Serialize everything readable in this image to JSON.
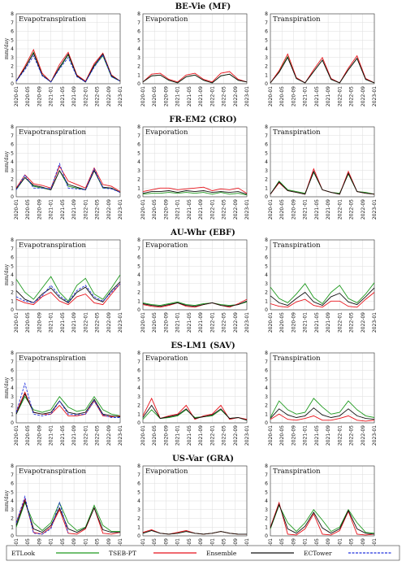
{
  "chart_data": {
    "type": "line",
    "x": [
      "2020-01",
      "2020-04",
      "2020-07",
      "2020-10",
      "2021-01",
      "2021-04",
      "2021-07",
      "2021-10",
      "2022-01",
      "2022-04",
      "2022-07",
      "2022-10",
      "2023-01"
    ],
    "xlim": [
      "2020-01",
      "2023-01"
    ],
    "xticks": [
      "2020-01",
      "2020-05",
      "2020-09",
      "2021-01",
      "2021-05",
      "2021-09",
      "2022-01",
      "2022-05",
      "2022-09",
      "2023-01"
    ],
    "ylim": [
      0,
      8
    ],
    "yticks": [
      0,
      1,
      2,
      3,
      4,
      5,
      6,
      7,
      8
    ],
    "grid": true,
    "ylabel": "mm/day",
    "legend_position": "bottom",
    "legend": [
      {
        "name": "ETLook",
        "color": "#1f9a1f",
        "dash": false
      },
      {
        "name": "TSEB-PT",
        "color": "#e8121a",
        "dash": false
      },
      {
        "name": "Ensemble",
        "color": "#111111",
        "dash": false
      },
      {
        "name": "ECTower",
        "color": "#2233dd",
        "dash": true
      }
    ],
    "rows": [
      {
        "title": "BE-Vie (MF)",
        "panels": [
          {
            "title": "Evapotranspiration",
            "series": [
              [
                0.3,
                1.8,
                3.6,
                1.0,
                0.2,
                1.8,
                3.3,
                0.9,
                0.2,
                2.0,
                3.2,
                0.8,
                0.3
              ],
              [
                0.3,
                2.0,
                3.9,
                1.2,
                0.2,
                2.2,
                3.6,
                1.0,
                0.3,
                2.3,
                3.5,
                1.0,
                0.3
              ],
              [
                0.3,
                1.8,
                3.5,
                1.0,
                0.2,
                1.9,
                3.4,
                0.9,
                0.2,
                2.1,
                3.4,
                0.9,
                0.3
              ],
              [
                0.3,
                1.6,
                3.2,
                0.9,
                0.2,
                1.7,
                3.0,
                0.8,
                0.2,
                1.9,
                3.3,
                0.8,
                0.3
              ]
            ]
          },
          {
            "title": "Evaporation",
            "series": [
              [
                0.2,
                0.9,
                1.0,
                0.4,
                0.1,
                0.8,
                1.0,
                0.4,
                0.1,
                0.9,
                1.1,
                0.4,
                0.2
              ],
              [
                0.2,
                1.1,
                1.2,
                0.5,
                0.2,
                1.0,
                1.2,
                0.5,
                0.2,
                1.2,
                1.4,
                0.5,
                0.2
              ],
              [
                0.2,
                0.9,
                1.0,
                0.4,
                0.1,
                0.8,
                1.0,
                0.4,
                0.1,
                0.9,
                1.1,
                0.4,
                0.2
              ]
            ]
          },
          {
            "title": "Transpiration",
            "series": [
              [
                0.1,
                1.4,
                3.1,
                0.6,
                0.1,
                1.4,
                2.7,
                0.5,
                0.1,
                1.6,
                2.9,
                0.5,
                0.1
              ],
              [
                0.1,
                1.5,
                3.4,
                0.7,
                0.1,
                1.6,
                3.0,
                0.6,
                0.1,
                1.8,
                3.2,
                0.6,
                0.1
              ],
              [
                0.1,
                1.3,
                3.0,
                0.6,
                0.1,
                1.4,
                2.7,
                0.5,
                0.1,
                1.6,
                2.9,
                0.5,
                0.1
              ]
            ]
          }
        ]
      },
      {
        "title": "FR-EM2 (CRO)",
        "panels": [
          {
            "title": "Evapotranspiration",
            "series": [
              [
                0.8,
                2.2,
                1.2,
                1.0,
                0.8,
                3.0,
                1.2,
                1.0,
                0.8,
                3.0,
                1.0,
                1.0,
                0.5
              ],
              [
                1.0,
                2.5,
                1.5,
                1.3,
                1.0,
                3.5,
                1.8,
                1.4,
                1.0,
                3.3,
                1.4,
                1.2,
                0.6
              ],
              [
                0.9,
                2.2,
                1.3,
                1.1,
                0.8,
                3.0,
                1.4,
                1.1,
                0.8,
                3.0,
                1.1,
                1.0,
                0.5
              ],
              [
                0.8,
                2.5,
                1.0,
                1.0,
                0.9,
                3.8,
                1.0,
                0.9,
                0.8,
                3.2,
                1.0,
                0.9,
                0.5
              ]
            ]
          },
          {
            "title": "Evaporation",
            "series": [
              [
                0.3,
                0.4,
                0.4,
                0.5,
                0.4,
                0.5,
                0.4,
                0.5,
                0.3,
                0.5,
                0.3,
                0.4,
                0.2
              ],
              [
                0.6,
                0.8,
                1.0,
                1.0,
                0.8,
                0.9,
                1.0,
                1.1,
                0.7,
                0.9,
                0.8,
                1.0,
                0.4
              ],
              [
                0.4,
                0.6,
                0.6,
                0.7,
                0.5,
                0.7,
                0.6,
                0.7,
                0.5,
                0.6,
                0.5,
                0.6,
                0.3
              ]
            ]
          },
          {
            "title": "Transpiration",
            "series": [
              [
                0.3,
                1.8,
                0.8,
                0.6,
                0.4,
                2.8,
                0.8,
                0.5,
                0.4,
                2.6,
                0.6,
                0.5,
                0.3
              ],
              [
                0.3,
                1.6,
                0.7,
                0.5,
                0.3,
                3.2,
                0.8,
                0.5,
                0.3,
                2.9,
                0.6,
                0.4,
                0.3
              ],
              [
                0.3,
                1.7,
                0.7,
                0.5,
                0.3,
                2.9,
                0.8,
                0.5,
                0.3,
                2.7,
                0.6,
                0.4,
                0.3
              ]
            ]
          }
        ]
      },
      {
        "title": "AU-Whr (EBF)",
        "panels": [
          {
            "title": "Evapotranspiration",
            "series": [
              [
                3.5,
                2.0,
                1.2,
                2.5,
                3.8,
                2.0,
                1.0,
                2.8,
                3.6,
                1.8,
                1.2,
                2.5,
                4.0
              ],
              [
                1.2,
                0.8,
                0.6,
                1.5,
                2.0,
                1.0,
                0.6,
                1.5,
                1.8,
                0.8,
                0.6,
                1.8,
                3.0
              ],
              [
                2.2,
                1.2,
                0.8,
                1.8,
                2.5,
                1.4,
                0.8,
                2.0,
                2.6,
                1.3,
                0.9,
                2.2,
                3.2
              ],
              [
                1.5,
                1.0,
                0.8,
                1.6,
                2.8,
                1.6,
                0.9,
                2.2,
                2.8,
                1.5,
                1.0,
                2.0,
                3.0
              ]
            ]
          },
          {
            "title": "Evaporation",
            "series": [
              [
                0.8,
                0.6,
                0.5,
                0.7,
                0.9,
                0.6,
                0.5,
                0.7,
                0.8,
                0.6,
                0.5,
                0.6,
                0.9
              ],
              [
                0.6,
                0.4,
                0.3,
                0.5,
                0.8,
                0.4,
                0.3,
                0.6,
                0.8,
                0.5,
                0.3,
                0.7,
                1.2
              ],
              [
                0.7,
                0.5,
                0.4,
                0.6,
                0.8,
                0.5,
                0.4,
                0.6,
                0.8,
                0.5,
                0.4,
                0.6,
                1.0
              ]
            ]
          },
          {
            "title": "Transpiration",
            "series": [
              [
                2.6,
                1.3,
                0.8,
                1.8,
                3.0,
                1.4,
                0.7,
                2.0,
                2.8,
                1.3,
                0.8,
                1.8,
                3.1
              ],
              [
                0.7,
                0.4,
                0.3,
                0.9,
                1.2,
                0.5,
                0.3,
                1.0,
                1.0,
                0.4,
                0.3,
                1.2,
                2.0
              ],
              [
                1.6,
                0.8,
                0.5,
                1.3,
                2.0,
                0.9,
                0.5,
                1.5,
                1.9,
                0.9,
                0.6,
                1.5,
                2.5
              ]
            ]
          }
        ]
      },
      {
        "title": "ES-LM1 (SAV)",
        "panels": [
          {
            "title": "Evapotranspiration",
            "series": [
              [
                1.0,
                3.0,
                1.5,
                1.2,
                1.5,
                3.0,
                1.8,
                1.3,
                1.5,
                3.0,
                1.5,
                1.0,
                0.8
              ],
              [
                1.2,
                3.5,
                1.2,
                1.0,
                1.0,
                2.0,
                0.8,
                0.8,
                1.0,
                2.5,
                0.8,
                0.7,
                0.8
              ],
              [
                1.0,
                3.3,
                1.2,
                1.0,
                1.2,
                2.5,
                1.2,
                1.0,
                1.2,
                2.7,
                1.0,
                0.8,
                0.7
              ],
              [
                1.2,
                4.5,
                1.0,
                0.8,
                1.0,
                2.5,
                1.0,
                0.9,
                1.0,
                2.5,
                0.9,
                0.6,
                0.6
              ]
            ]
          },
          {
            "title": "Evaporation",
            "series": [
              [
                0.4,
                1.5,
                0.5,
                0.6,
                0.8,
                1.5,
                0.6,
                0.7,
                0.8,
                1.5,
                0.5,
                0.6,
                0.3
              ],
              [
                0.8,
                2.8,
                0.5,
                0.8,
                1.0,
                2.0,
                0.4,
                0.8,
                1.0,
                2.0,
                0.4,
                0.6,
                0.4
              ],
              [
                0.6,
                2.0,
                0.5,
                0.7,
                0.9,
                1.6,
                0.5,
                0.7,
                0.9,
                1.6,
                0.5,
                0.6,
                0.3
              ]
            ]
          },
          {
            "title": "Transpiration",
            "series": [
              [
                0.6,
                2.5,
                1.5,
                1.0,
                1.2,
                2.8,
                1.8,
                1.0,
                1.2,
                2.5,
                1.5,
                0.8,
                0.6
              ],
              [
                0.4,
                1.0,
                0.4,
                0.3,
                0.5,
                0.8,
                0.3,
                0.3,
                0.5,
                0.8,
                0.3,
                0.2,
                0.3
              ],
              [
                0.5,
                1.6,
                0.9,
                0.6,
                0.8,
                1.7,
                0.9,
                0.6,
                0.8,
                1.6,
                0.8,
                0.5,
                0.4
              ]
            ]
          }
        ]
      },
      {
        "title": "US-Var (GRA)",
        "panels": [
          {
            "title": "Evapotranspiration",
            "series": [
              [
                1.0,
                3.8,
                1.5,
                0.6,
                1.5,
                3.8,
                1.5,
                0.6,
                1.0,
                3.5,
                1.2,
                0.5,
                0.5
              ],
              [
                1.5,
                4.2,
                0.4,
                0.2,
                1.0,
                3.0,
                0.3,
                0.2,
                0.8,
                3.2,
                0.3,
                0.2,
                0.4
              ],
              [
                1.2,
                4.0,
                0.8,
                0.4,
                1.2,
                3.2,
                0.8,
                0.4,
                0.9,
                3.2,
                0.7,
                0.4,
                0.4
              ],
              [
                1.5,
                4.5,
                0.3,
                0.2,
                0.8,
                3.8,
                0.3,
                null,
                null,
                null,
                null,
                null,
                null
              ]
            ]
          },
          {
            "title": "Evaporation",
            "series": [
              [
                0.3,
                0.6,
                0.3,
                0.2,
                0.3,
                0.5,
                0.3,
                0.2,
                0.3,
                0.5,
                0.3,
                0.2,
                0.2
              ],
              [
                0.4,
                0.7,
                0.3,
                0.2,
                0.4,
                0.6,
                0.3,
                0.2,
                0.3,
                0.5,
                0.3,
                0.2,
                0.2
              ],
              [
                0.3,
                0.6,
                0.3,
                0.2,
                0.3,
                0.5,
                0.3,
                0.2,
                0.3,
                0.5,
                0.3,
                0.2,
                0.2
              ]
            ]
          },
          {
            "title": "Transpiration",
            "series": [
              [
                0.8,
                3.5,
                1.5,
                0.5,
                1.5,
                3.0,
                1.8,
                0.5,
                1.0,
                3.0,
                1.5,
                0.4,
                0.3
              ],
              [
                1.0,
                3.8,
                0.2,
                0.1,
                0.8,
                2.5,
                0.2,
                0.1,
                0.6,
                2.8,
                0.2,
                0.1,
                0.2
              ],
              [
                0.9,
                3.6,
                0.8,
                0.3,
                1.1,
                2.7,
                0.9,
                0.3,
                0.8,
                2.9,
                0.8,
                0.3,
                0.2
              ]
            ]
          }
        ]
      }
    ]
  }
}
